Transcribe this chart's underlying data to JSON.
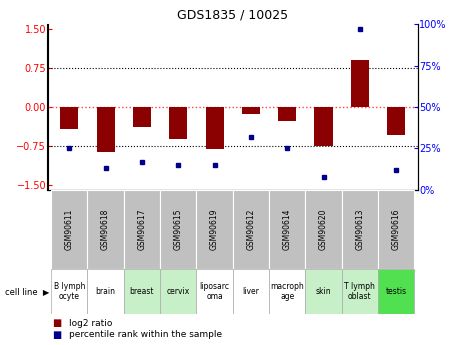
{
  "title": "GDS1835 / 10025",
  "samples": [
    "GSM90611",
    "GSM90618",
    "GSM90617",
    "GSM90615",
    "GSM90619",
    "GSM90612",
    "GSM90614",
    "GSM90620",
    "GSM90613",
    "GSM90616"
  ],
  "cell_lines": [
    "B lymph\nocyte",
    "brain",
    "breast",
    "cervix",
    "liposarc\noma",
    "liver",
    "macroph\nage",
    "skin",
    "T lymph\noblast",
    "testis"
  ],
  "cell_line_colors": [
    "#ffffff",
    "#ffffff",
    "#c8f0c8",
    "#c8f0c8",
    "#ffffff",
    "#ffffff",
    "#ffffff",
    "#c8f0c8",
    "#c8f0c8",
    "#50e050"
  ],
  "log2_ratio": [
    -0.42,
    -0.88,
    -0.38,
    -0.62,
    -0.82,
    -0.13,
    -0.28,
    -0.75,
    0.9,
    -0.55
  ],
  "percentile_rank": [
    25,
    13,
    17,
    15,
    15,
    32,
    25,
    8,
    97,
    12
  ],
  "bar_color": "#8B0000",
  "dot_color": "#00008B",
  "zero_line_color": "#FF4444",
  "dotted_line_color": "#000000",
  "bg_color_gray": "#C0C0C0",
  "ylim_left": [
    -1.6,
    1.6
  ],
  "yticks_left": [
    -1.5,
    -0.75,
    0,
    0.75,
    1.5
  ],
  "yticks_right": [
    0,
    25,
    50,
    75,
    100
  ]
}
